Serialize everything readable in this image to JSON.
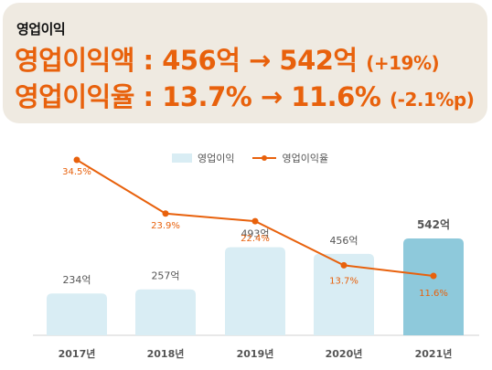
{
  "summary": {
    "title": "영업이익",
    "line1_label": "영업이익액 : 456억 → 542억",
    "line1_paren": "(+19%)",
    "line2_label": "영업이익율 : 13.7% → 11.6%",
    "line2_paren": "(-2.1%p)"
  },
  "chart_data": {
    "type": "bar",
    "categories": [
      "2017년",
      "2018년",
      "2019년",
      "2020년",
      "2021년"
    ],
    "series": [
      {
        "name": "영업이익",
        "values": [
          234,
          257,
          493,
          456,
          542
        ],
        "labels": [
          "234억",
          "257억",
          "493억",
          "456억",
          "542억"
        ]
      },
      {
        "name": "영업이익율",
        "values": [
          34.5,
          23.9,
          22.4,
          13.7,
          11.6
        ],
        "labels": [
          "34.5%",
          "23.9%",
          "22.4%",
          "13.7%",
          "11.6%"
        ]
      }
    ],
    "legend_position": "top",
    "colors": {
      "bar": "#d9edf4",
      "bar_highlight": "#8ec9db",
      "line": "#e8610c"
    },
    "grid": false
  }
}
